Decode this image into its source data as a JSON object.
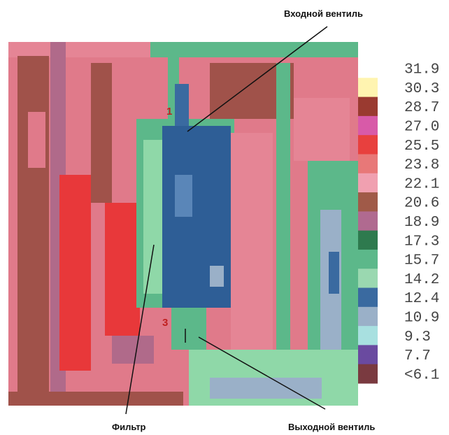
{
  "annotations": {
    "inlet_valve": "Входной вентиль",
    "filter": "Фильтр",
    "outlet_valve": "Выходной вентиль"
  },
  "markers": [
    "1",
    "3"
  ],
  "scale": [
    {
      "label": "31.9",
      "color": "#ffffff"
    },
    {
      "label": "30.3",
      "color": "#fff4b0"
    },
    {
      "label": "28.7",
      "color": "#9a3a30"
    },
    {
      "label": "27.0",
      "color": "#d85aa8"
    },
    {
      "label": "25.5",
      "color": "#e8403e"
    },
    {
      "label": "23.8",
      "color": "#e87878"
    },
    {
      "label": "22.1",
      "color": "#f0a0b0"
    },
    {
      "label": "20.6",
      "color": "#a05a48"
    },
    {
      "label": "18.9",
      "color": "#b06a90"
    },
    {
      "label": "17.3",
      "color": "#2e7a4e"
    },
    {
      "label": "15.7",
      "color": "#5cb88a"
    },
    {
      "label": "14.2",
      "color": "#9ad8b0"
    },
    {
      "label": "12.4",
      "color": "#3a6aa0"
    },
    {
      "label": "10.9",
      "color": "#9ab0c8"
    },
    {
      "label": "9.3",
      "color": "#a8e0e0"
    },
    {
      "label": "7.7",
      "color": "#6a4aa0"
    },
    {
      "label": "<6.1",
      "color": "#7a3a40"
    }
  ]
}
